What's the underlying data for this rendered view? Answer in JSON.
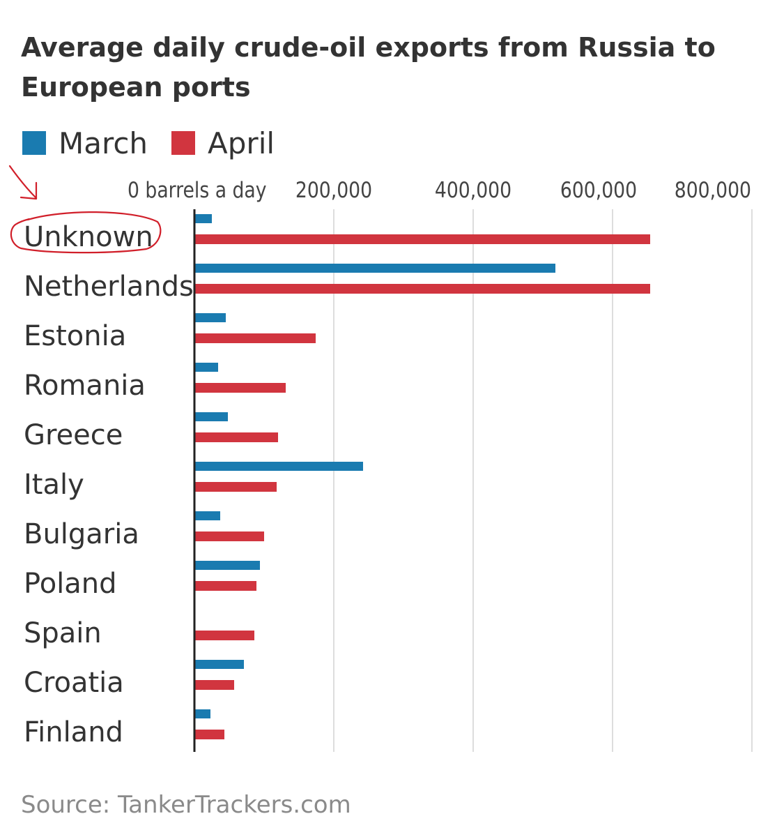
{
  "title": "Average daily crude-oil exports from Russia to European ports",
  "source": "Source: TankerTrackers.com",
  "colors": {
    "march": "#1a7bb0",
    "april": "#d1353f",
    "axis": "#222222",
    "grid": "#dddddd",
    "text": "#333333",
    "tick": "#444444",
    "annotation": "#d11f2a"
  },
  "chart_data": {
    "type": "bar",
    "orientation": "horizontal",
    "title": "Average daily crude-oil exports from Russia to European ports",
    "unit": "barrels a day",
    "categories": [
      "Unknown",
      "Netherlands",
      "Estonia",
      "Romania",
      "Greece",
      "Italy",
      "Bulgaria",
      "Poland",
      "Spain",
      "Croatia",
      "Finland"
    ],
    "series": [
      {
        "name": "March",
        "values": [
          25000,
          518000,
          45000,
          34000,
          48000,
          242000,
          37000,
          94000,
          0,
          71000,
          23000
        ]
      },
      {
        "name": "April",
        "values": [
          654000,
          654000,
          174000,
          131000,
          120000,
          118000,
          100000,
          89000,
          86000,
          57000,
          43000
        ]
      }
    ],
    "xlim": [
      0,
      800000
    ],
    "ticks": [
      {
        "value": 0,
        "label": "0 barrels a day"
      },
      {
        "value": 200000,
        "label": "200,000"
      },
      {
        "value": 400000,
        "label": "400,000"
      },
      {
        "value": 600000,
        "label": "600,000"
      },
      {
        "value": 800000,
        "label": "800,000"
      }
    ],
    "grid": true,
    "legend": "top-left",
    "annotation": "circled-category-Unknown-with-arrow"
  }
}
